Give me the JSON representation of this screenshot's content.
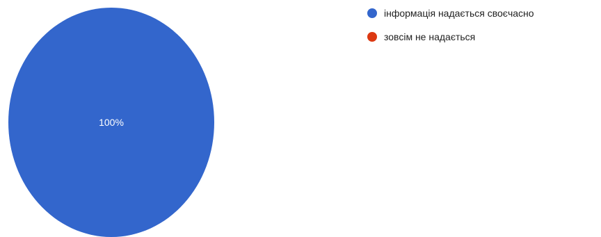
{
  "chart_data": {
    "type": "pie",
    "title": "",
    "slices": [
      {
        "label": "інформація надається своєчасно",
        "value": 100,
        "display": "100%",
        "color": "#3366cc"
      },
      {
        "label": "зовсім не надається",
        "value": 0,
        "display": "",
        "color": "#dc3912"
      }
    ],
    "legend_position": "right"
  }
}
